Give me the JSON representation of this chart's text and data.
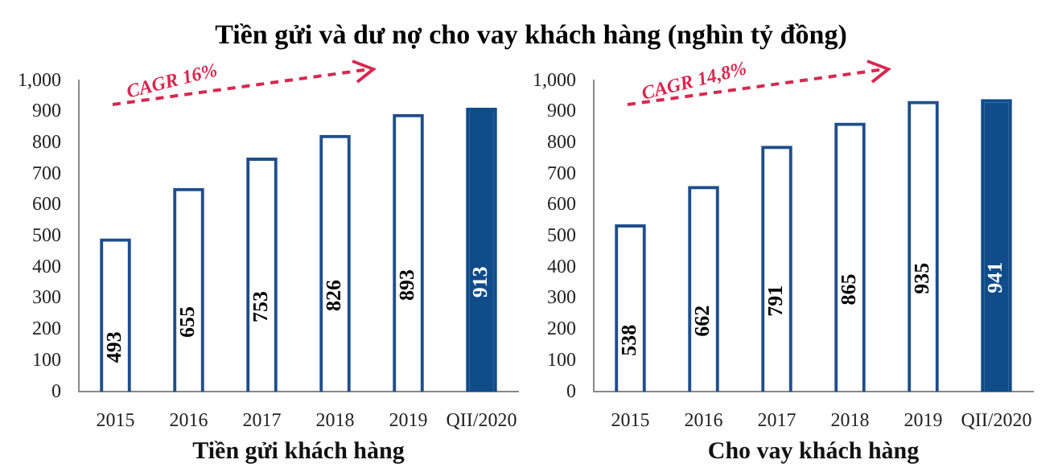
{
  "chart_data": [
    {
      "type": "bar",
      "title": "Tiền gửi và dư nợ cho vay khách hàng (nghìn tỷ đồng)",
      "xlabel": "Tiền gửi khách hàng",
      "categories": [
        "2015",
        "2016",
        "2017",
        "2018",
        "2019",
        "QII/2020"
      ],
      "series": [
        {
          "color": "#1f4e8c",
          "values": [
            493,
            655,
            753,
            826,
            893,
            null
          ]
        },
        {
          "color": "#0f4c8a",
          "values": [
            null,
            null,
            null,
            null,
            null,
            913
          ]
        }
      ],
      "ylim": [
        0,
        1000
      ],
      "yticks": [
        0,
        100,
        200,
        300,
        400,
        500,
        600,
        700,
        800,
        900,
        {
          "value": 1000,
          "label": "1,000"
        }
      ],
      "data_labels": true,
      "grid": false,
      "legend": false,
      "annotations": [
        "CAGR 16%"
      ]
    },
    {
      "type": "bar",
      "xlabel": "Cho vay khách hàng",
      "categories": [
        "2015",
        "2016",
        "2017",
        "2018",
        "2019",
        "QII/2020"
      ],
      "series": [
        {
          "color": "#1f4e8c",
          "values": [
            538,
            662,
            791,
            865,
            935,
            null
          ]
        },
        {
          "color": "#0f4c8a",
          "values": [
            null,
            null,
            null,
            null,
            null,
            941
          ]
        }
      ],
      "ylim": [
        0,
        1000
      ],
      "yticks": [
        0,
        100,
        200,
        300,
        400,
        500,
        600,
        700,
        800,
        900,
        {
          "value": 1000,
          "label": "1,000"
        }
      ],
      "data_labels": true,
      "grid": false,
      "legend": false,
      "annotations": [
        "CAGR 14,8%"
      ]
    }
  ]
}
